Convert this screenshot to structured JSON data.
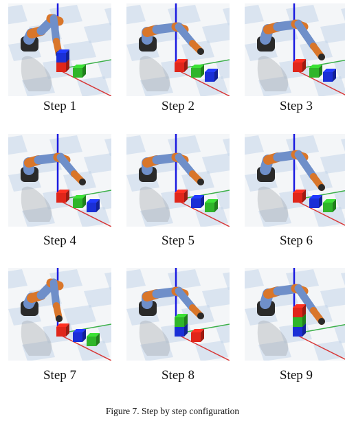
{
  "figure": {
    "caption": "Figure 7.   Step by step configuration",
    "steps": [
      {
        "label": "Step 1",
        "stack_bottom_to_top": [
          "red",
          "blue"
        ],
        "loose_cubes": [
          "green"
        ],
        "arm_pose": "down"
      },
      {
        "label": "Step 2",
        "stack_bottom_to_top": [
          "red"
        ],
        "loose_cubes": [
          "green",
          "blue"
        ],
        "arm_pose": "forward"
      },
      {
        "label": "Step 3",
        "stack_bottom_to_top": [
          "red"
        ],
        "loose_cubes": [
          "green",
          "blue"
        ],
        "arm_pose": "reach"
      },
      {
        "label": "Step 4",
        "stack_bottom_to_top": [
          "red"
        ],
        "loose_cubes": [
          "green",
          "blue"
        ],
        "arm_pose": "forward"
      },
      {
        "label": "Step 5",
        "stack_bottom_to_top": [
          "red"
        ],
        "loose_cubes": [
          "blue",
          "green"
        ],
        "arm_pose": "forward"
      },
      {
        "label": "Step 6",
        "stack_bottom_to_top": [
          "red"
        ],
        "loose_cubes": [
          "blue",
          "green"
        ],
        "arm_pose": "reach"
      },
      {
        "label": "Step 7",
        "stack_bottom_to_top": [
          "red"
        ],
        "loose_cubes": [
          "blue",
          "green"
        ],
        "arm_pose": "down"
      },
      {
        "label": "Step 8",
        "stack_bottom_to_top": [
          "blue",
          "green"
        ],
        "loose_cubes": [
          "red"
        ],
        "arm_pose": "forward"
      },
      {
        "label": "Step 9",
        "stack_bottom_to_top": [
          "blue",
          "green",
          "red"
        ],
        "loose_cubes": [],
        "arm_pose": "reach"
      }
    ]
  },
  "colors": {
    "red": "#e0261a",
    "green": "#2fb52a",
    "blue": "#1a2fd6",
    "arm_link": "#6f8fc9",
    "arm_joint": "#d9762a",
    "base": "#2a2a2a",
    "axis_z": "#1a1ae0",
    "axis_x": "#d83a3a",
    "axis_y": "#3cb04a",
    "floor_light": "#f4f6f8",
    "floor_dark": "#c5d6ea"
  }
}
